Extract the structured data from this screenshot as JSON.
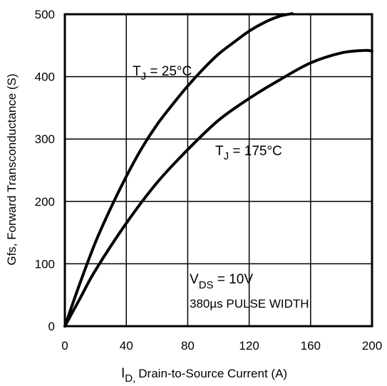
{
  "chart_data": {
    "type": "line",
    "title": "",
    "xlabel": {
      "symbol": "I",
      "subscript": "D,",
      "text": "Drain-to-Source Current (A)"
    },
    "ylabel": "Gfs, Forward Transconductance (S)",
    "xlim": [
      0,
      200
    ],
    "ylim": [
      0,
      500
    ],
    "xticks": [
      0,
      40,
      80,
      120,
      160,
      200
    ],
    "yticks": [
      0,
      100,
      200,
      300,
      400,
      500
    ],
    "grid": true,
    "series": [
      {
        "name": "T_J = 25°C",
        "label_symbol": "T",
        "label_subscript": "J",
        "label_text": " = 25°C",
        "color": "#000000",
        "x": [
          0,
          10,
          20,
          30,
          40,
          50,
          60,
          70,
          80,
          90,
          100,
          110,
          120,
          130,
          140,
          148
        ],
        "y": [
          0,
          70,
          135,
          190,
          240,
          285,
          323,
          355,
          385,
          412,
          436,
          455,
          473,
          487,
          497,
          501
        ]
      },
      {
        "name": "T_J = 175°C",
        "label_symbol": "T",
        "label_subscript": "J",
        "label_text": " = 175°C",
        "color": "#000000",
        "x": [
          0,
          10,
          20,
          40,
          60,
          80,
          100,
          120,
          140,
          160,
          180,
          195,
          200
        ],
        "y": [
          0,
          45,
          90,
          165,
          230,
          283,
          330,
          365,
          395,
          422,
          438,
          442,
          441
        ]
      }
    ],
    "annotations": [
      {
        "symbol": "V",
        "subscript": "DS",
        "text": " = 10V"
      },
      {
        "text": "380µs PULSE WIDTH"
      }
    ]
  }
}
